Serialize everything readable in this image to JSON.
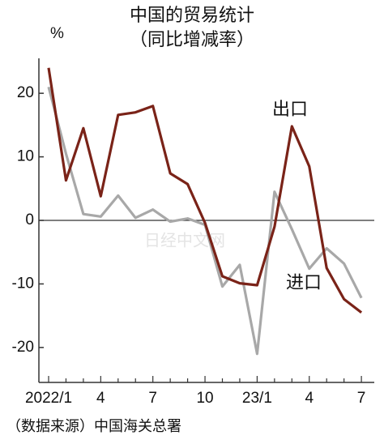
{
  "chart_data": {
    "type": "line",
    "title": "中国的贸易统计",
    "subtitle": "（同比增减率）",
    "unit_label": "%",
    "source": "（数据来源）中国海关总署",
    "watermark": "日经中文网",
    "categories": [
      "2022/1",
      null,
      null,
      "4",
      null,
      null,
      "7",
      null,
      null,
      "10",
      null,
      null,
      "23/1",
      null,
      null,
      "4",
      null,
      null,
      "7"
    ],
    "series": [
      {
        "name": "出口",
        "color": "#7a2318",
        "values": [
          24,
          6.3,
          14.5,
          3.8,
          16.6,
          17.0,
          18.0,
          7.4,
          5.7,
          -0.4,
          -8.8,
          -9.9,
          -10.2,
          -1.0,
          14.8,
          8.5,
          -7.5,
          -12.4,
          -14.5
        ]
      },
      {
        "name": "进口",
        "color": "#a8a8a8",
        "values": [
          21,
          10.5,
          1.0,
          0.6,
          3.9,
          0.4,
          1.7,
          -0.2,
          0.3,
          -0.7,
          -10.4,
          -7.0,
          -21,
          4.5,
          -1.4,
          -7.6,
          -4.4,
          -6.8,
          -12.2
        ]
      }
    ],
    "ylim": [
      -25.5,
      25.5
    ],
    "yticks": [
      20,
      10,
      0,
      -10,
      -20
    ]
  }
}
